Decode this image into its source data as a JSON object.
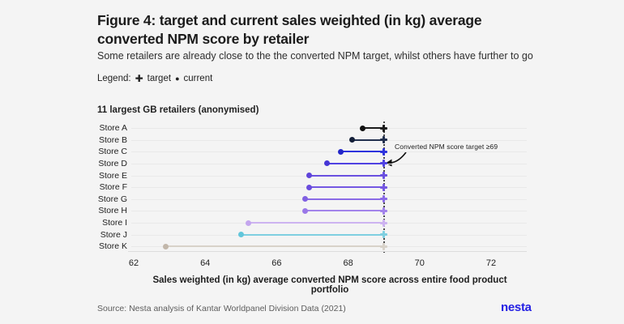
{
  "header": {
    "title": "Figure 4: target and current sales weighted (in kg) average\nconverted NPM score by retailer",
    "subtitle": "Some retailers are already close to the the converted NPM target, whilst others have further to go",
    "legend": {
      "label": "Legend:",
      "target_marker": "✚",
      "target_label": "target",
      "current_marker": "●",
      "current_label": "current"
    }
  },
  "chart_data": {
    "type": "dumbbell",
    "title": "11 largest GB retailers (anonymised)",
    "xlabel": "Sales weighted (in kg) average converted NPM score across entire food product portfolio",
    "x_ticks": [
      62,
      64,
      66,
      68,
      70,
      72
    ],
    "xlim": [
      61.8,
      73
    ],
    "target_value": 69,
    "annotation": "Converted NPM score target ≥69",
    "grid": "horizontal-row-lines",
    "legend_position": "top-left",
    "series": [
      {
        "label": "Store A",
        "current": 68.4,
        "target": 69,
        "color": "#1b1b1b",
        "dot": "#111111"
      },
      {
        "label": "Store B",
        "current": 68.1,
        "target": 69,
        "color": "#22304e",
        "dot": "#141f38"
      },
      {
        "label": "Store C",
        "current": 67.8,
        "target": 69,
        "color": "#2d33dd",
        "dot": "#2326c8"
      },
      {
        "label": "Store D",
        "current": 67.4,
        "target": 69,
        "color": "#4f42e2",
        "dot": "#4636d6"
      },
      {
        "label": "Store E",
        "current": 66.9,
        "target": 69,
        "color": "#6a50e0",
        "dot": "#5f44da"
      },
      {
        "label": "Store F",
        "current": 66.9,
        "target": 69,
        "color": "#7457e2",
        "dot": "#6a4cdd"
      },
      {
        "label": "Store G",
        "current": 66.8,
        "target": 69,
        "color": "#8a6ae6",
        "dot": "#8160e2"
      },
      {
        "label": "Store H",
        "current": 66.8,
        "target": 69,
        "color": "#a283eb",
        "dot": "#9a78e8"
      },
      {
        "label": "Store I",
        "current": 65.2,
        "target": 69,
        "color": "#cdb3f0",
        "dot": "#c4a6ee"
      },
      {
        "label": "Store J",
        "current": 65.0,
        "target": 69,
        "color": "#7fcfe0",
        "dot": "#62c6db"
      },
      {
        "label": "Store K",
        "current": 62.9,
        "target": 69,
        "color": "#d8d2c9",
        "dot": "#c2b7aa"
      }
    ]
  },
  "footer": {
    "source": "Source: Nesta analysis of Kantar Worldpanel Division Data (2021)",
    "logo": "nesta"
  }
}
